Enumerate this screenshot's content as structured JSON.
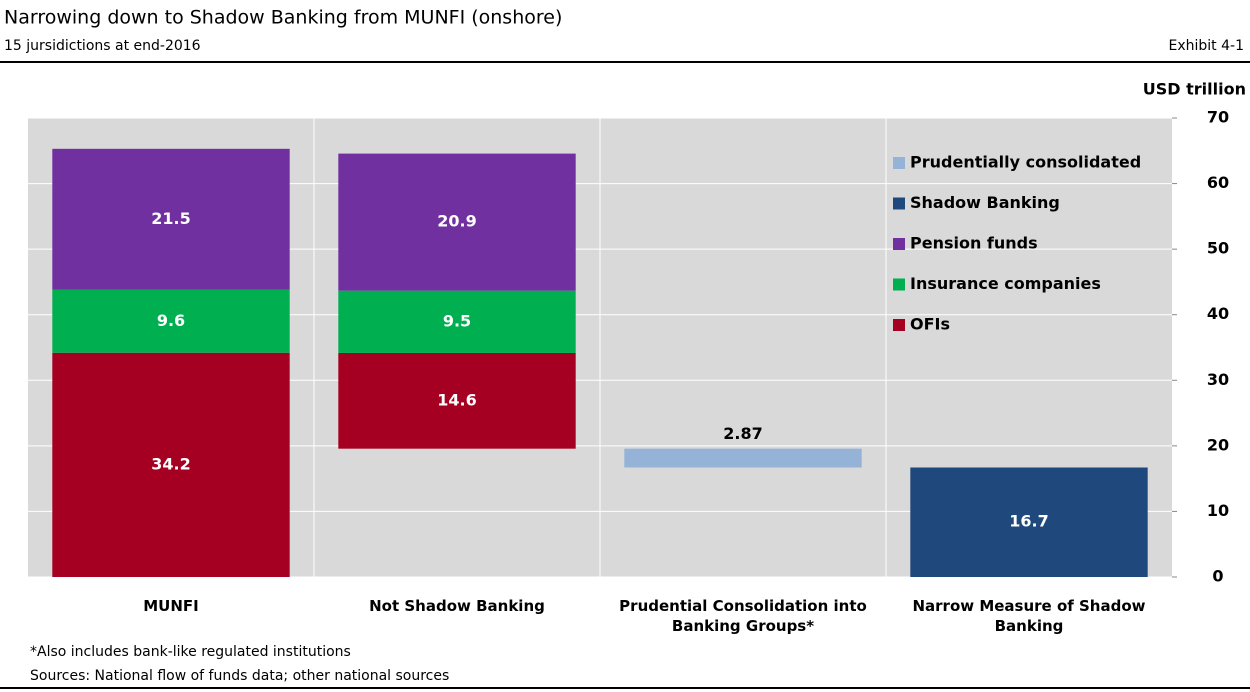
{
  "chart_data": {
    "type": "waterfall",
    "title": "Narrowing down to Shadow Banking from MUNFI (onshore)",
    "subtitle": "15 jursidictions at end-2016",
    "exhibit": "Exhibit 4-1",
    "y_axis_label": "USD trillion",
    "categories": [
      "MUNFI",
      "Not Shadow Banking",
      "Prudential Consolidation into Banking Groups*",
      "Narrow Measure of Shadow Banking"
    ],
    "series": [
      {
        "name": "Prudentially consolidated",
        "color": "#95b3d7",
        "values": [
          null,
          null,
          2.87,
          null
        ]
      },
      {
        "name": "Shadow Banking",
        "color": "#1f497d",
        "values": [
          null,
          null,
          null,
          16.7
        ]
      },
      {
        "name": "Pension funds",
        "color": "#7030a0",
        "values": [
          21.5,
          20.9,
          null,
          null
        ]
      },
      {
        "name": "Insurance companies",
        "color": "#00b050",
        "values": [
          9.6,
          9.5,
          null,
          null
        ]
      },
      {
        "name": "OFIs",
        "color": "#a50021",
        "values": [
          34.2,
          14.6,
          null,
          null
        ]
      }
    ],
    "ylim": [
      0,
      70
    ],
    "yticks": [
      0,
      10,
      20,
      30,
      40,
      50,
      60,
      70
    ],
    "grid": true,
    "legend": "upper right",
    "notes": [
      "*Also includes bank-like regulated institutions",
      "Sources: National flow of funds data; other national sources"
    ]
  }
}
